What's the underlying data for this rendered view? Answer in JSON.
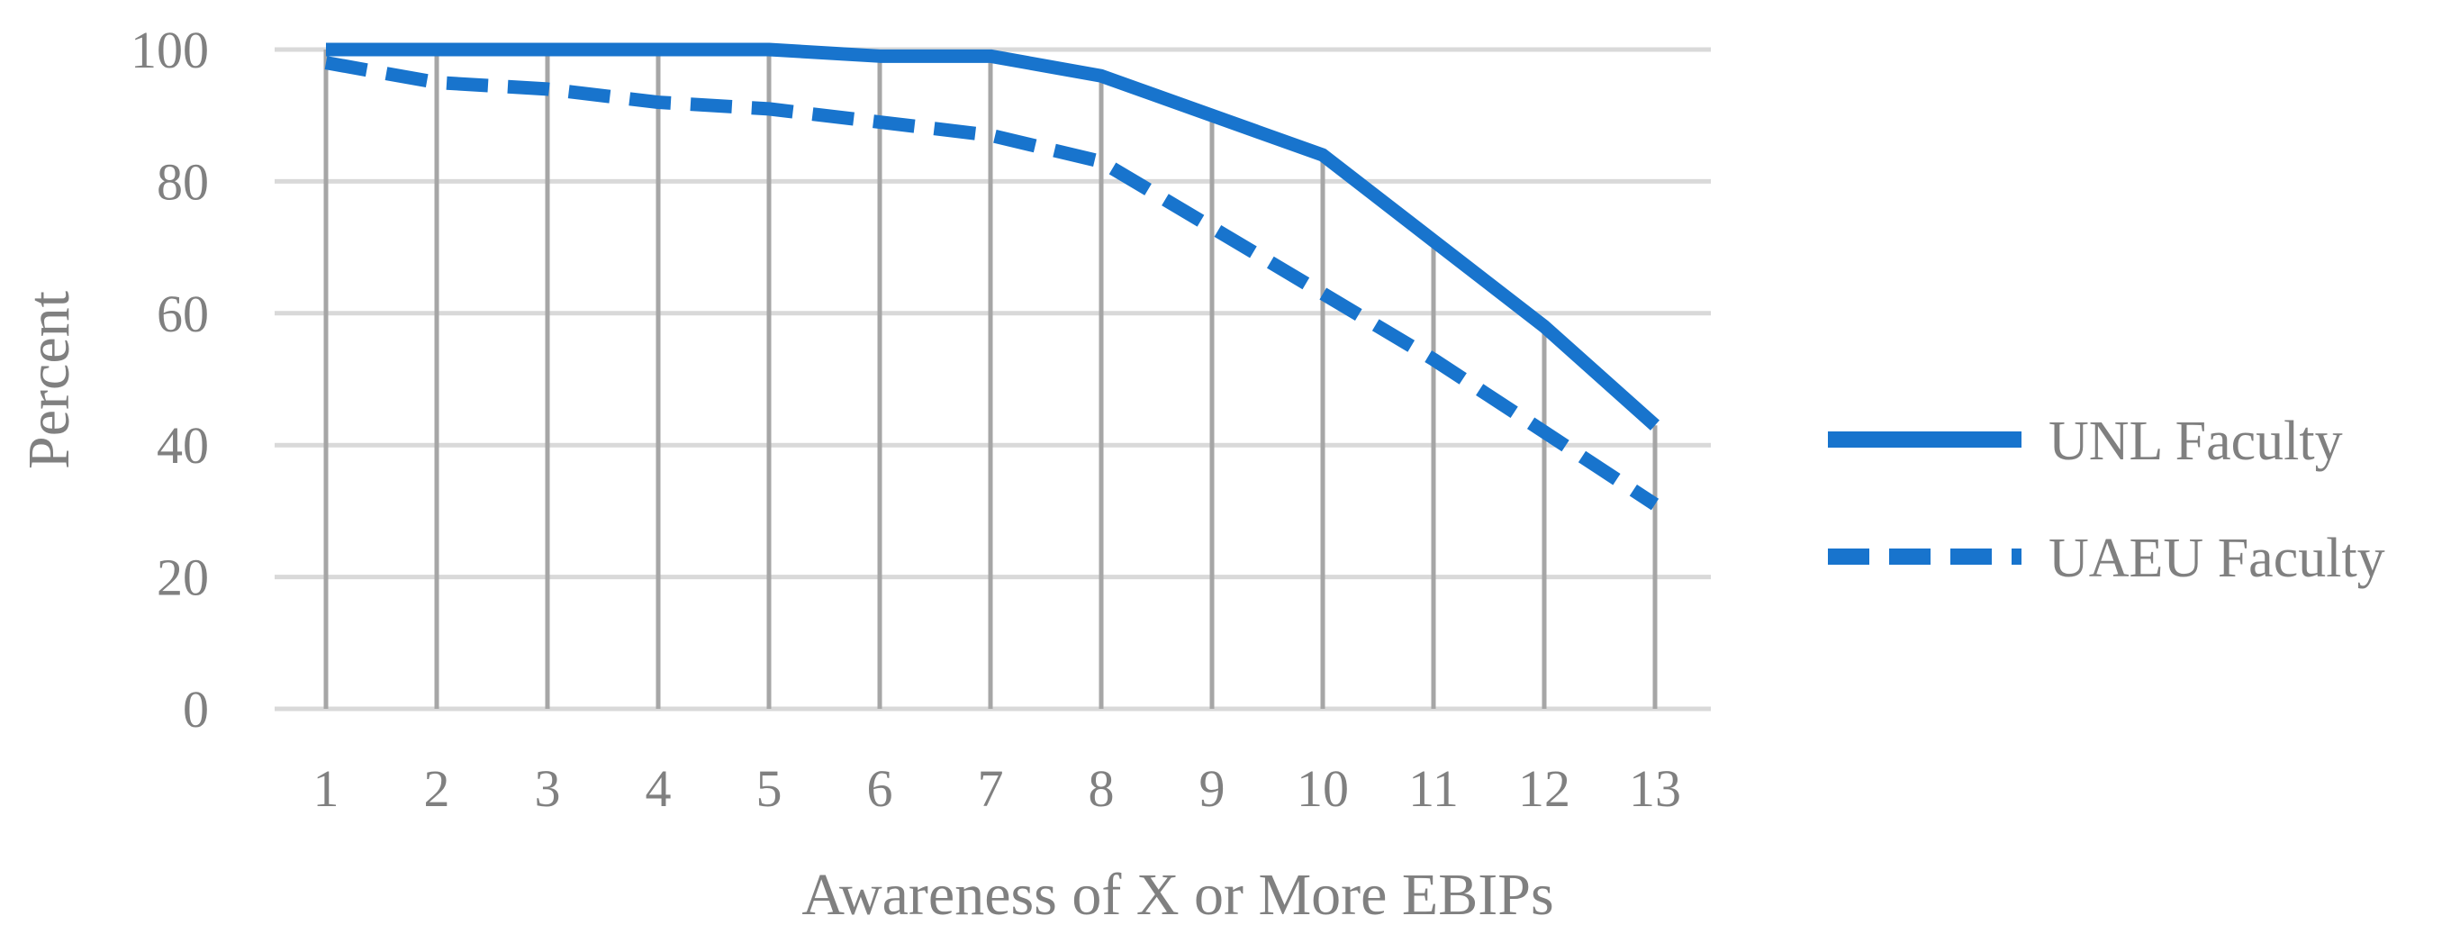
{
  "chart_data": {
    "type": "line",
    "title": "",
    "xlabel": "Awareness of X or More EBIPs",
    "ylabel": "Percent",
    "x": [
      1,
      2,
      3,
      4,
      5,
      6,
      7,
      8,
      9,
      10,
      11,
      12,
      13
    ],
    "ylim": [
      0,
      100
    ],
    "yticks": [
      0,
      20,
      40,
      60,
      80,
      100
    ],
    "grid": true,
    "legend_position": "right",
    "series": [
      {
        "name": "UNL Faculty",
        "style": "solid",
        "color": "#1874CD",
        "values": [
          100,
          100,
          100,
          100,
          100,
          99,
          99,
          96,
          90,
          84,
          71,
          58,
          43
        ]
      },
      {
        "name": "UAEU Faculty",
        "style": "dashed",
        "color": "#1874CD",
        "values": [
          98,
          95,
          94,
          92,
          91,
          89,
          87,
          83,
          73,
          63,
          53,
          42,
          31
        ]
      }
    ]
  },
  "colors": {
    "gridline": "#D9D9D9",
    "category_line": "#A6A6A6",
    "text": "#808080"
  }
}
